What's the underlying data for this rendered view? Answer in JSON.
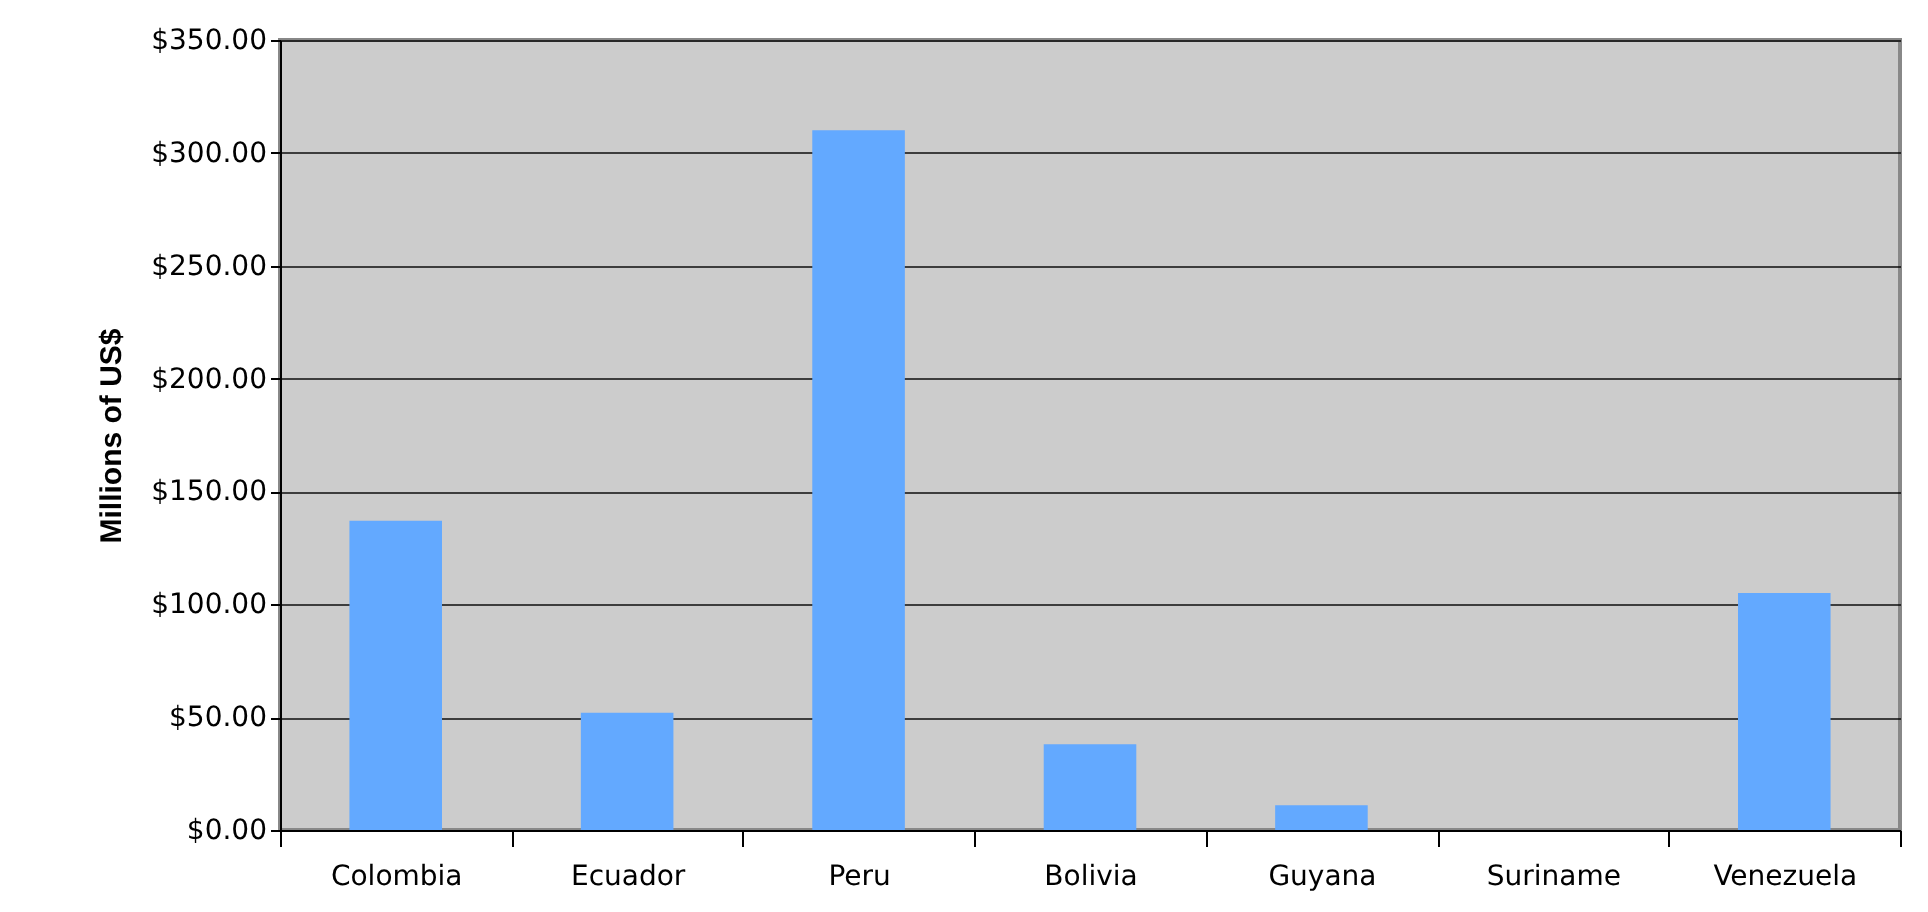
{
  "chart_data": {
    "type": "bar",
    "ylabel": "Millions of US$",
    "categories": [
      "Colombia",
      "Ecuador",
      "Peru",
      "Bolivia",
      "Guyana",
      "Suriname",
      "Venezuela"
    ],
    "values": [
      137,
      52,
      310,
      38,
      11,
      0,
      105
    ],
    "color": "#63a9ff",
    "ylim": [
      0,
      350
    ],
    "yticks": [
      {
        "value": 0,
        "label": "$0.00"
      },
      {
        "value": 50,
        "label": "$50.00"
      },
      {
        "value": 100,
        "label": "$100.00"
      },
      {
        "value": 150,
        "label": "$150.00"
      },
      {
        "value": 200,
        "label": "$200.00"
      },
      {
        "value": 250,
        "label": "$250.00"
      },
      {
        "value": 300,
        "label": "$300.00"
      },
      {
        "value": 350,
        "label": "$350.00"
      }
    ],
    "grid": "y"
  }
}
